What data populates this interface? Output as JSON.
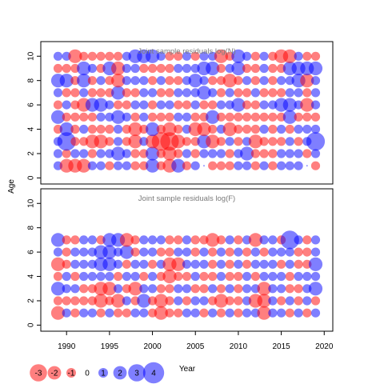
{
  "chart_data": {
    "type": "scatter",
    "subtype": "bubble",
    "xlabel": "Year",
    "ylabel": "Age",
    "x_range": [
      1987,
      2021
    ],
    "y_range": [
      -0.5,
      11.2
    ],
    "x_ticks": [
      1990,
      1995,
      2000,
      2005,
      2010,
      2015,
      2020
    ],
    "y_ticks": [
      0,
      2,
      4,
      6,
      8,
      10
    ],
    "colors": {
      "positive": "#0000ff",
      "negative": "#ff0000",
      "opacity": 0.5
    },
    "panels": [
      {
        "title": "Joint sample residuals log(N)",
        "years": [
          1989,
          1990,
          1991,
          1992,
          1993,
          1994,
          1995,
          1996,
          1997,
          1998,
          1999,
          2000,
          2001,
          2002,
          2003,
          2004,
          2005,
          2006,
          2007,
          2008,
          2009,
          2010,
          2011,
          2012,
          2013,
          2014,
          2015,
          2016,
          2017,
          2018,
          2019
        ],
        "ages": [
          1,
          2,
          3,
          4,
          5,
          6,
          7,
          8,
          9,
          10
        ],
        "residuals": [
          [
            1,
            -2,
            -2,
            -2,
            1,
            1,
            -1,
            1,
            1,
            -1,
            -1,
            2,
            -1,
            -2,
            2,
            -1,
            1,
            0,
            -1,
            -1,
            -1,
            1,
            1,
            -1,
            1,
            -1,
            1,
            1,
            1,
            0,
            -1
          ],
          [
            1,
            -1,
            1,
            1,
            -1,
            1,
            1,
            2,
            1,
            -1,
            -1,
            2,
            -1,
            -2,
            -1,
            1,
            -1,
            1,
            1,
            1,
            -1,
            1,
            2,
            -1,
            -1,
            -1,
            1,
            1,
            1,
            -1,
            1
          ],
          [
            1,
            3,
            -1,
            -1,
            -2,
            -2,
            -1,
            1,
            -1,
            -2,
            1,
            -2,
            -3,
            -3,
            -2,
            -1,
            -1,
            2,
            -2,
            -1,
            1,
            -1,
            1,
            -2,
            -1,
            -1,
            -1,
            1,
            -1,
            1,
            3
          ],
          [
            -1,
            2,
            -1,
            1,
            -1,
            -1,
            -1,
            1,
            -1,
            -2,
            -1,
            2,
            -1,
            -2,
            -1,
            1,
            -2,
            -2,
            -1,
            1,
            -2,
            -1,
            -1,
            -1,
            1,
            -1,
            1,
            -1,
            1,
            1,
            1
          ],
          [
            2,
            -1,
            -1,
            -1,
            -1,
            1,
            1,
            2,
            1,
            -1,
            1,
            -1,
            -1,
            -1,
            1,
            1,
            -1,
            -1,
            2,
            -1,
            -1,
            -1,
            -1,
            -1,
            -1,
            -1,
            -1,
            2,
            -1,
            -1,
            -1
          ],
          [
            -1,
            1,
            -1,
            -2,
            2,
            2,
            1,
            -1,
            -1,
            1,
            1,
            -1,
            1,
            1,
            -1,
            -1,
            1,
            -1,
            -1,
            1,
            1,
            2,
            -1,
            -1,
            1,
            1,
            2,
            2,
            1,
            -2,
            1
          ],
          [
            1,
            -1,
            -1,
            1,
            -1,
            -1,
            -1,
            2,
            -1,
            -1,
            1,
            1,
            -1,
            -1,
            1,
            1,
            1,
            2,
            1,
            -1,
            1,
            -1,
            -1,
            1,
            -1,
            -1,
            -1,
            1,
            1,
            -1,
            1
          ],
          [
            2,
            2,
            -1,
            2,
            -1,
            1,
            -1,
            -2,
            1,
            1,
            1,
            -1,
            1,
            -1,
            -1,
            1,
            2,
            1,
            -1,
            -1,
            -2,
            -1,
            1,
            -1,
            1,
            -1,
            1,
            1,
            2,
            -2,
            1
          ],
          [
            -1,
            -1,
            -1,
            2,
            1,
            -1,
            2,
            -2,
            1,
            1,
            -1,
            -1,
            -1,
            -1,
            1,
            1,
            1,
            2,
            2,
            -1,
            1,
            2,
            -1,
            -1,
            1,
            -1,
            -1,
            2,
            2,
            2,
            2
          ],
          [
            1,
            1,
            -2,
            -1,
            -1,
            -1,
            -1,
            -1,
            1,
            2,
            2,
            2,
            1,
            -1,
            -1,
            1,
            -1,
            1,
            1,
            -2,
            -1,
            2,
            1,
            -1,
            1,
            -1,
            -2,
            -2,
            1,
            -1,
            -1
          ]
        ]
      },
      {
        "title": "Joint sample residuals log(F)",
        "years": [
          1989,
          1990,
          1991,
          1992,
          1993,
          1994,
          1995,
          1996,
          1997,
          1998,
          1999,
          2000,
          2001,
          2002,
          2003,
          2004,
          2005,
          2006,
          2007,
          2008,
          2009,
          2010,
          2011,
          2012,
          2013,
          2014,
          2015,
          2016,
          2017,
          2018,
          2019
        ],
        "ages": [
          1,
          2,
          3,
          4,
          5,
          6,
          7
        ],
        "residuals": [
          [
            -2,
            1,
            -1,
            1,
            1,
            -1,
            1,
            -1,
            -1,
            1,
            1,
            -1,
            -2,
            -1,
            -1,
            1,
            1,
            -1,
            1,
            -1,
            1,
            -1,
            1,
            1,
            -2,
            1,
            1,
            -1,
            1,
            -1,
            1
          ],
          [
            -1,
            -1,
            -1,
            -1,
            -1,
            -2,
            -1,
            -2,
            1,
            -1,
            2,
            -1,
            -2,
            -1,
            1,
            -1,
            1,
            1,
            -1,
            -2,
            -1,
            -1,
            1,
            -2,
            -2,
            1,
            -1,
            1,
            -1,
            1,
            -1
          ],
          [
            2,
            1,
            1,
            -1,
            -1,
            -2,
            -2,
            1,
            -1,
            -2,
            1,
            1,
            -1,
            -1,
            1,
            1,
            -1,
            -1,
            1,
            -1,
            1,
            -1,
            1,
            1,
            -2,
            1,
            1,
            -1,
            -1,
            1,
            2
          ],
          [
            -1,
            1,
            -1,
            1,
            1,
            1,
            1,
            -1,
            1,
            1,
            -1,
            1,
            -1,
            -2,
            -1,
            -1,
            1,
            -1,
            -1,
            1,
            -1,
            -1,
            1,
            -1,
            1,
            1,
            1,
            -1,
            1,
            1,
            1
          ],
          [
            -2,
            -1,
            1,
            1,
            1,
            2,
            2,
            1,
            -1,
            1,
            1,
            -1,
            1,
            -2,
            -2,
            1,
            1,
            1,
            -1,
            1,
            -1,
            1,
            -1,
            1,
            1,
            1,
            -1,
            1,
            -1,
            -1,
            2
          ],
          [
            1,
            -1,
            1,
            1,
            1,
            2,
            2,
            1,
            2,
            -1,
            1,
            1,
            -1,
            -1,
            1,
            1,
            -1,
            1,
            -1,
            1,
            -1,
            1,
            -1,
            1,
            -1,
            1,
            1,
            1,
            -1,
            -1,
            1
          ],
          [
            2,
            -1,
            -1,
            1,
            1,
            -1,
            2,
            2,
            -2,
            -1,
            1,
            1,
            1,
            -1,
            -1,
            1,
            -1,
            -1,
            -2,
            -1,
            1,
            -1,
            1,
            -2,
            1,
            1,
            -1,
            3,
            1,
            -1,
            1
          ]
        ]
      }
    ],
    "legend": {
      "placement": "bottom-left",
      "values": [
        -3,
        -2,
        -1,
        0,
        1,
        2,
        3,
        4
      ]
    }
  }
}
